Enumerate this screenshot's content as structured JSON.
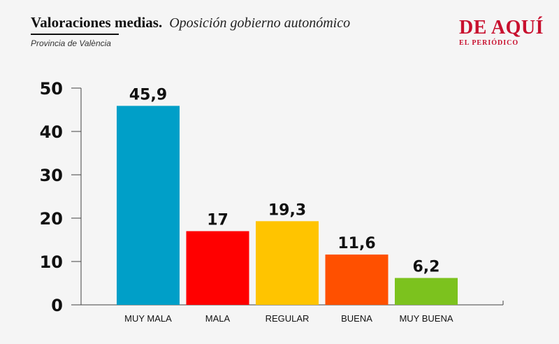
{
  "header": {
    "title": "Valoraciones medias.",
    "subtitle": "Oposición gobierno autonómico",
    "province": "Provincia de València"
  },
  "logo": {
    "main": "DE AQUÍ",
    "sub": "EL PERIÓDICO"
  },
  "chart_data": {
    "type": "bar",
    "categories": [
      "MUY MALA",
      "MALA",
      "REGULAR",
      "BUENA",
      "MUY BUENA"
    ],
    "values": [
      45.9,
      17,
      19.3,
      11.6,
      6.2
    ],
    "value_labels": [
      "45,9",
      "17",
      "19,3",
      "11,6",
      "6,2"
    ],
    "colors": [
      "#009fc8",
      "#ff0000",
      "#ffc400",
      "#ff5000",
      "#7cc21e"
    ],
    "yticks": [
      0,
      10,
      20,
      30,
      40,
      50
    ],
    "ylim": [
      0,
      50
    ],
    "grid": false,
    "title": "",
    "xlabel": "",
    "ylabel": ""
  }
}
